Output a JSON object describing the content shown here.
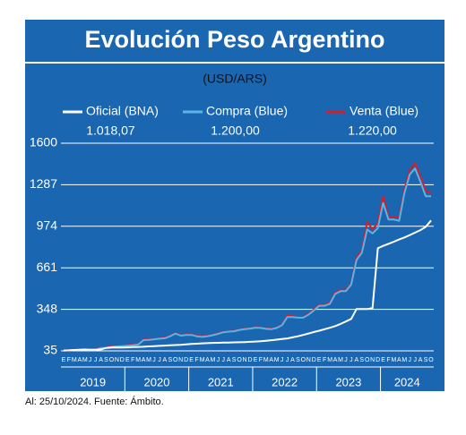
{
  "chart_data": {
    "type": "line",
    "title": "Evolución Peso Argentino",
    "subtitle": "(USD/ARS)",
    "footnote": "Al: 25/10/2024. Fuente: Ámbito.",
    "x": [
      "E",
      "F",
      "M",
      "A",
      "M",
      "J",
      "J",
      "A",
      "S",
      "O",
      "N",
      "D",
      "E",
      "F",
      "M",
      "A",
      "M",
      "J",
      "J",
      "A",
      "S",
      "O",
      "N",
      "D",
      "E",
      "F",
      "M",
      "A",
      "M",
      "J",
      "J",
      "A",
      "S",
      "O",
      "N",
      "D",
      "E",
      "F",
      "M",
      "A",
      "M",
      "J",
      "J",
      "A",
      "S",
      "O",
      "N",
      "D",
      "E",
      "F",
      "M",
      "A",
      "M",
      "J",
      "J",
      "A",
      "S",
      "O",
      "N",
      "D",
      "E",
      "F",
      "M",
      "A",
      "M",
      "J",
      "J",
      "A",
      "S",
      "O"
    ],
    "years": [
      "2019",
      "2020",
      "2021",
      "2022",
      "2023",
      "2024"
    ],
    "ylim": [
      35,
      1600
    ],
    "yticks": [
      35,
      348,
      661,
      974,
      1287,
      1600
    ],
    "grid": true,
    "series": [
      {
        "name": "Venta (Blue)",
        "color": "#d0202e",
        "last_value_label": "1.220,00",
        "values": [
          40,
          41,
          44,
          46,
          47,
          46,
          45,
          59,
          62,
          70,
          72,
          74,
          78,
          80,
          86,
          120,
          122,
          126,
          131,
          134,
          148,
          170,
          155,
          160,
          160,
          150,
          145,
          149,
          157,
          167,
          179,
          184,
          186,
          196,
          201,
          206,
          214,
          212,
          205,
          202,
          212,
          232,
          300,
          296,
          290,
          292,
          316,
          348,
          383,
          383,
          398,
          475,
          495,
          495,
          545,
          740,
          790,
          1010,
          950,
          1000,
          1200,
          1045,
          1045,
          1040,
          1250,
          1400,
          1450,
          1350,
          1240,
          1220
        ]
      },
      {
        "name": "Compra (Blue)",
        "color": "#5bb4e5",
        "last_value_label": "1.200,00",
        "values": [
          38,
          39,
          42,
          44,
          45,
          44,
          43,
          56,
          58,
          65,
          68,
          70,
          74,
          77,
          82,
          116,
          118,
          122,
          127,
          130,
          145,
          165,
          150,
          155,
          155,
          145,
          140,
          145,
          153,
          163,
          175,
          180,
          183,
          193,
          198,
          203,
          210,
          208,
          201,
          198,
          208,
          228,
          290,
          290,
          285,
          285,
          308,
          340,
          375,
          375,
          390,
          465,
          485,
          485,
          535,
          720,
          775,
          950,
          920,
          960,
          1150,
          1025,
          1025,
          1015,
          1225,
          1365,
          1410,
          1310,
          1200,
          1200
        ]
      },
      {
        "name": "Oficial (BNA)",
        "color": "#ffffff",
        "last_value_label": "1.018,07",
        "values": [
          38,
          39,
          42,
          43,
          45,
          44,
          43,
          46,
          57,
          60,
          60,
          60,
          61,
          63,
          65,
          66,
          69,
          71,
          73,
          75,
          77,
          79,
          81,
          84,
          87,
          89,
          92,
          93,
          95,
          96,
          97,
          98,
          99,
          100,
          101,
          103,
          105,
          107,
          111,
          115,
          119,
          124,
          129,
          137,
          145,
          155,
          166,
          177,
          187,
          198,
          209,
          222,
          238,
          256,
          276,
          350,
          350,
          350,
          358,
          808,
          826,
          842,
          857,
          874,
          890,
          908,
          926,
          945,
          970,
          1018.07
        ]
      }
    ]
  }
}
